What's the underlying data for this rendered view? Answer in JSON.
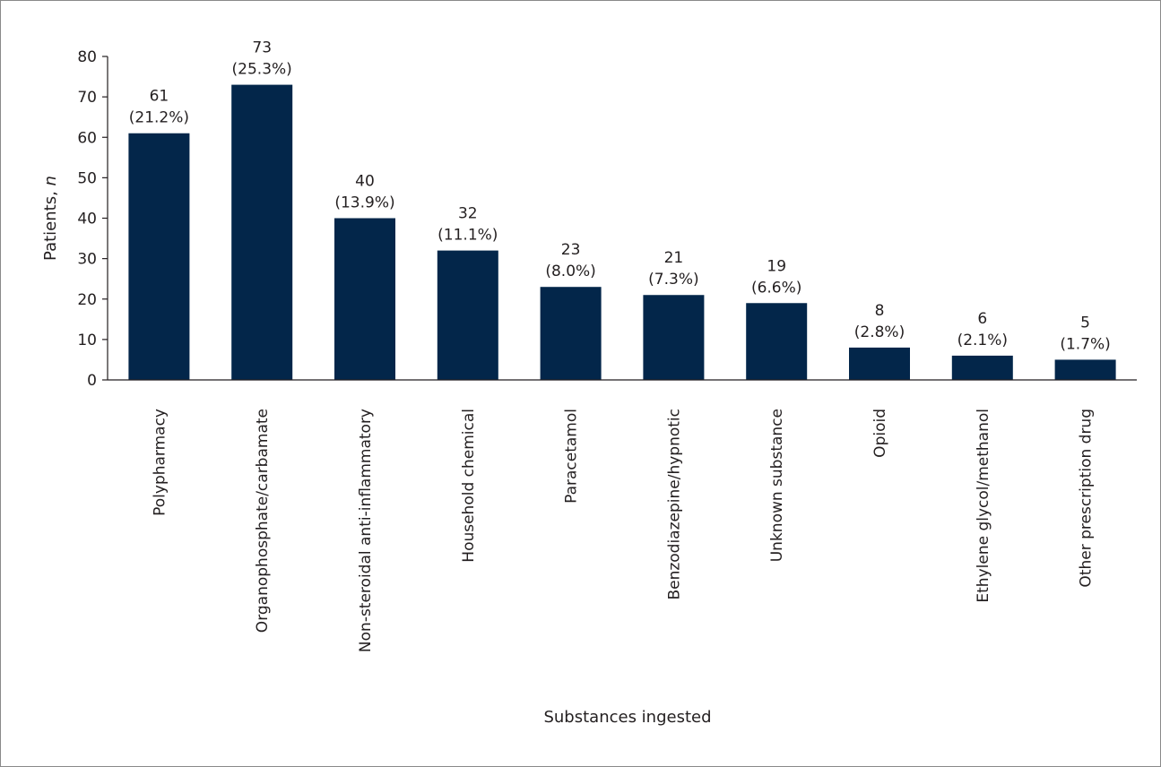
{
  "colors": {
    "bar": "#03264a",
    "axis": "#231f20",
    "frame": "#8a8a8a"
  },
  "chart_data": {
    "type": "bar",
    "categories": [
      "Polypharmacy",
      "Organophosphate/carbamate",
      "Non-steroidal anti-inflammatory",
      "Household chemical",
      "Paracetamol",
      "Benzodiazepine/hypnotic",
      "Unknown substance",
      "Opioid",
      "Ethylene glycol/methanol",
      "Other prescription drug"
    ],
    "values": [
      61,
      73,
      40,
      32,
      23,
      21,
      19,
      8,
      6,
      5
    ],
    "percent_labels": [
      "(21.2%)",
      "(25.3%)",
      "(13.9%)",
      "(11.1%)",
      "(8.0%)",
      "(7.3%)",
      "(6.6%)",
      "(2.8%)",
      "(2.1%)",
      "(1.7%)"
    ],
    "xlabel": "Substances ingested",
    "ylabel": "Patients, ",
    "ylabel_italic": "n",
    "ylim": [
      0,
      80
    ],
    "yticks": [
      "0",
      "10",
      "20",
      "30",
      "40",
      "50",
      "60",
      "70",
      "80"
    ],
    "grid": false,
    "legend": "none"
  }
}
